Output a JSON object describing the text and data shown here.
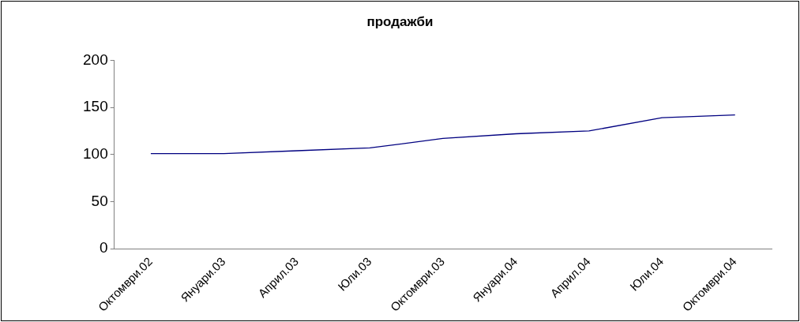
{
  "chart_data": {
    "type": "line",
    "title": "продажби",
    "categories": [
      "Октомври.02",
      "Януари.03",
      "Април.03",
      "Юли.03",
      "Октомври.03",
      "Януари.04",
      "Април.04",
      "Юли.04",
      "Октомври.04"
    ],
    "series": [
      {
        "color": "#000080",
        "values": [
          101,
          101,
          104,
          107,
          117,
          122,
          125,
          139,
          142
        ]
      }
    ],
    "ylim": [
      0,
      200
    ],
    "yticks": [
      0,
      50,
      100,
      150,
      200
    ],
    "grid": false,
    "legend": false,
    "marker": "none",
    "line_style": "solid"
  }
}
